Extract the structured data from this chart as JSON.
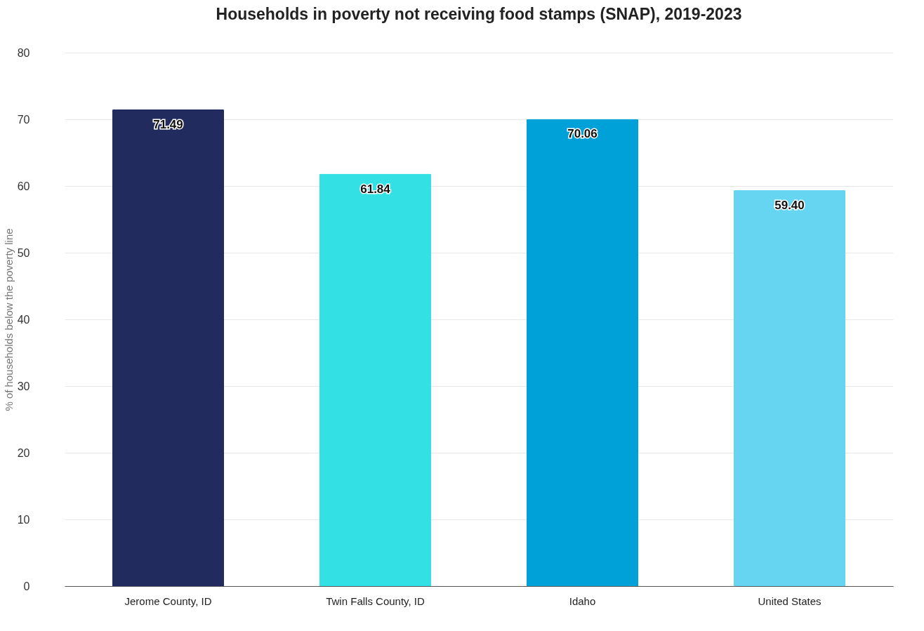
{
  "chart_data": {
    "type": "bar",
    "title": "Households in poverty not receiving food stamps (SNAP), 2019-2023",
    "ylabel": "% of households below the poverty line",
    "categories": [
      "Jerome County, ID",
      "Twin Falls County, ID",
      "Idaho",
      "United States"
    ],
    "values": [
      71.49,
      61.84,
      70.06,
      59.4
    ],
    "value_labels": [
      "71.49",
      "61.84",
      "70.06",
      "59.40"
    ],
    "colors": [
      "#222b5e",
      "#33e0e3",
      "#00a0d8",
      "#66d5f2"
    ],
    "ylim": [
      0,
      80
    ],
    "yticks": [
      0,
      10,
      20,
      30,
      40,
      50,
      60,
      70,
      80
    ],
    "grid": "y"
  }
}
